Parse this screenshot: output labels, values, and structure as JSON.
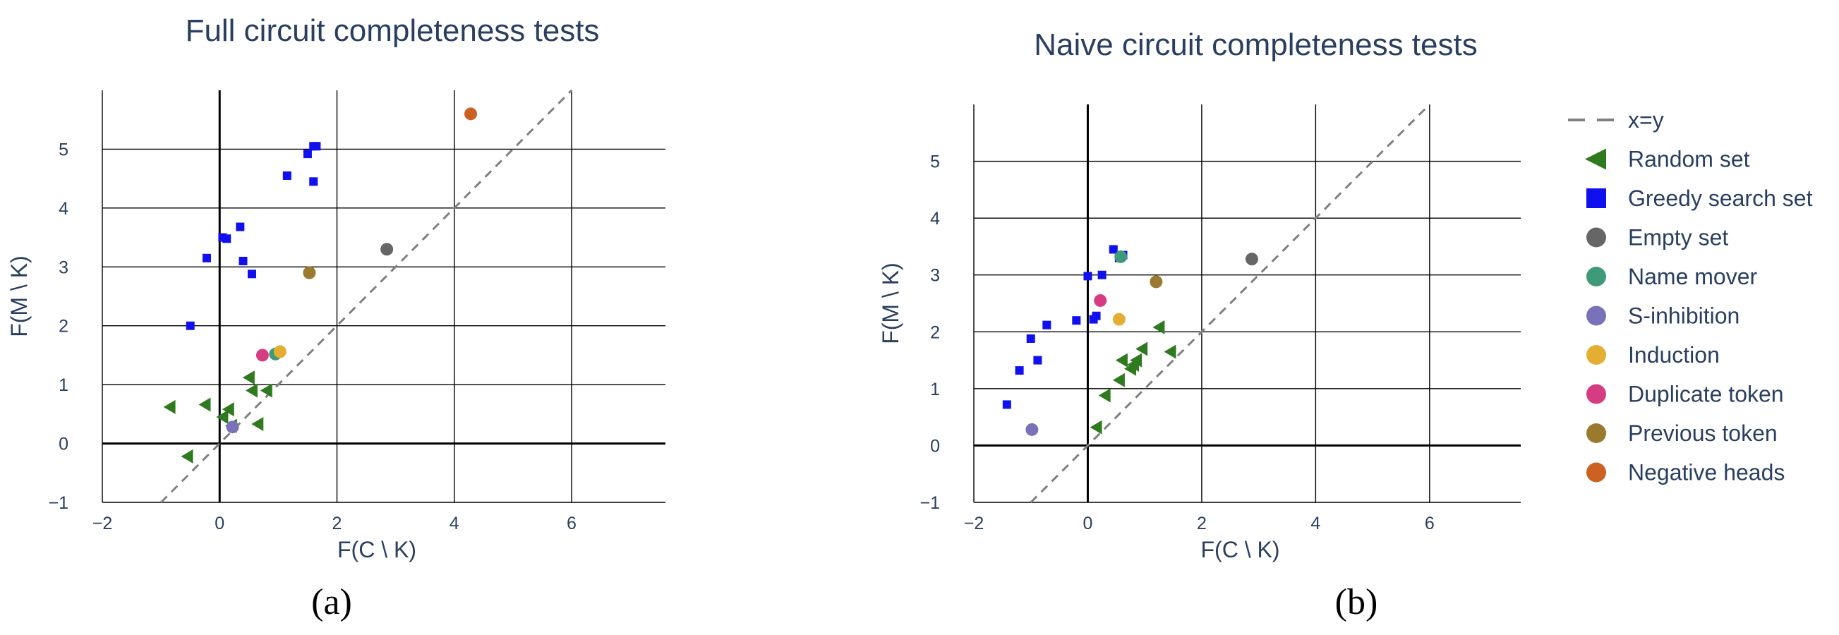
{
  "chart_data": [
    {
      "type": "scatter",
      "panel_label": "(a)",
      "title": "Full circuit completeness tests",
      "xlabel": "F(C \\ K)",
      "ylabel": "F(M \\ K)",
      "xlim": [
        -2,
        7.6
      ],
      "ylim": [
        -1,
        6.0
      ],
      "xticks": [
        -2,
        0,
        2,
        4,
        6
      ],
      "yticks": [
        -1,
        0,
        1,
        2,
        3,
        4,
        5
      ],
      "grid": true,
      "series": [
        {
          "name": "x=y",
          "kind": "line",
          "x": [
            -1,
            6
          ],
          "y": [
            -1,
            6
          ]
        },
        {
          "name": "Random set",
          "kind": "triangle-left",
          "x": [
            -0.85,
            -0.55,
            -0.25,
            0.05,
            0.15,
            0.2,
            0.5,
            0.55,
            0.65,
            0.8
          ],
          "y": [
            0.62,
            -0.22,
            0.66,
            0.45,
            0.58,
            0.3,
            1.12,
            0.9,
            0.33,
            0.9
          ]
        },
        {
          "name": "Greedy search set",
          "kind": "square",
          "x": [
            -0.5,
            -0.22,
            0.05,
            0.12,
            0.35,
            0.4,
            0.55,
            1.15,
            1.5,
            1.6,
            1.6,
            1.65
          ],
          "y": [
            2.0,
            3.15,
            3.5,
            3.48,
            3.68,
            3.1,
            2.88,
            4.55,
            4.92,
            4.45,
            5.05,
            5.05
          ]
        },
        {
          "name": "Empty set",
          "kind": "circle",
          "x": [
            2.85
          ],
          "y": [
            3.3
          ]
        },
        {
          "name": "Name mover",
          "kind": "circle",
          "x": [
            0.95
          ],
          "y": [
            1.52
          ]
        },
        {
          "name": "S-inhibition",
          "kind": "circle",
          "x": [
            0.22
          ],
          "y": [
            0.28
          ]
        },
        {
          "name": "Induction",
          "kind": "circle",
          "x": [
            1.03
          ],
          "y": [
            1.56
          ]
        },
        {
          "name": "Duplicate token",
          "kind": "circle",
          "x": [
            0.73
          ],
          "y": [
            1.5
          ]
        },
        {
          "name": "Previous token",
          "kind": "circle",
          "x": [
            1.53
          ],
          "y": [
            2.9
          ]
        },
        {
          "name": "Negative heads",
          "kind": "circle",
          "x": [
            4.28
          ],
          "y": [
            5.6
          ]
        }
      ]
    },
    {
      "type": "scatter",
      "panel_label": "(b)",
      "title": "Naive circuit completeness tests",
      "xlabel": "F(C \\ K)",
      "ylabel": "F(M \\ K)",
      "xlim": [
        -2,
        7.6
      ],
      "ylim": [
        -1,
        6.0
      ],
      "xticks": [
        -2,
        0,
        2,
        4,
        6
      ],
      "yticks": [
        -1,
        0,
        1,
        2,
        3,
        4,
        5
      ],
      "grid": true,
      "legend_position": "right",
      "series": [
        {
          "name": "x=y",
          "kind": "line",
          "x": [
            -1,
            6
          ],
          "y": [
            -1,
            6
          ]
        },
        {
          "name": "Random set",
          "kind": "triangle-left",
          "x": [
            0.15,
            0.3,
            0.55,
            0.6,
            0.75,
            0.8,
            0.85,
            0.95,
            1.25,
            1.45
          ],
          "y": [
            0.32,
            0.88,
            1.15,
            1.5,
            1.35,
            1.42,
            1.5,
            1.7,
            2.08,
            1.65
          ]
        },
        {
          "name": "Greedy search set",
          "kind": "square",
          "x": [
            -1.42,
            -1.2,
            -1.0,
            -0.88,
            -0.72,
            -0.2,
            0.0,
            0.1,
            0.15,
            0.25,
            0.45,
            0.55,
            0.62
          ],
          "y": [
            0.72,
            1.32,
            1.88,
            1.5,
            2.12,
            2.2,
            2.98,
            2.22,
            2.28,
            3.0,
            3.45,
            3.3,
            3.35
          ]
        },
        {
          "name": "Empty set",
          "kind": "circle",
          "x": [
            2.88
          ],
          "y": [
            3.28
          ]
        },
        {
          "name": "Name mover",
          "kind": "circle",
          "x": [
            0.58
          ],
          "y": [
            3.32
          ]
        },
        {
          "name": "S-inhibition",
          "kind": "circle",
          "x": [
            -0.98
          ],
          "y": [
            0.28
          ]
        },
        {
          "name": "Induction",
          "kind": "circle",
          "x": [
            0.55
          ],
          "y": [
            2.22
          ]
        },
        {
          "name": "Duplicate token",
          "kind": "circle",
          "x": [
            0.22
          ],
          "y": [
            2.55
          ]
        },
        {
          "name": "Previous token",
          "kind": "circle",
          "x": [
            1.2
          ],
          "y": [
            2.88
          ]
        },
        {
          "name": "Negative heads",
          "kind": "circle",
          "x": [],
          "y": []
        }
      ]
    }
  ],
  "colors": {
    "x=y": "#808080",
    "Random set": "#2f7a1f",
    "Greedy search set": "#1010ee",
    "Empty set": "#666666",
    "Name mover": "#3f9a7a",
    "S-inhibition": "#7a72b8",
    "Induction": "#e3ae32",
    "Duplicate token": "#d63c82",
    "Previous token": "#9a7a2e",
    "Negative heads": "#cc6222",
    "text": "#2a3f5f",
    "grid": "#000000"
  }
}
